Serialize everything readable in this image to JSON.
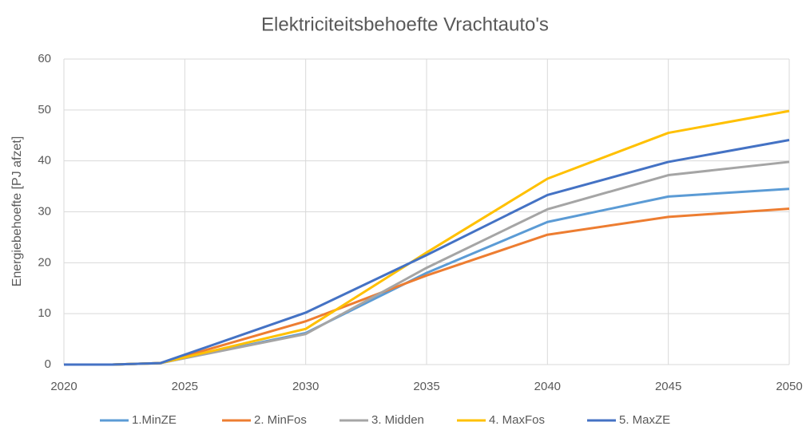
{
  "chart_data": {
    "type": "line",
    "title": "Elektriciteitsbehoefte Vrachtauto's",
    "y_label": "Energiebehoefte [PJ afzet]",
    "x": [
      2020,
      2022,
      2024,
      2030,
      2035,
      2040,
      2045,
      2050
    ],
    "series": [
      {
        "name": "1.MinZE",
        "color": "#5b9bd5",
        "values": [
          0,
          0,
          0.3,
          6.2,
          18,
          28,
          33,
          34.5
        ]
      },
      {
        "name": "2. MinFos",
        "color": "#ed7d31",
        "values": [
          0,
          0,
          0.3,
          8.5,
          17.5,
          25.5,
          29,
          30.6
        ]
      },
      {
        "name": "3. Midden",
        "color": "#a5a5a5",
        "values": [
          0,
          0,
          0.3,
          6,
          19,
          30.5,
          37.2,
          39.8
        ]
      },
      {
        "name": "4. MaxFos",
        "color": "#ffc000",
        "values": [
          0,
          0,
          0.3,
          7,
          22,
          36.5,
          45.5,
          49.8
        ]
      },
      {
        "name": "5. MaxZE",
        "color": "#4472c4",
        "values": [
          0,
          0,
          0.3,
          10.2,
          21.5,
          33.3,
          39.8,
          44.1
        ]
      }
    ],
    "xlim": [
      2020,
      2050
    ],
    "xticks": [
      2020,
      2025,
      2030,
      2035,
      2040,
      2045,
      2050
    ],
    "ylim": [
      0,
      60
    ],
    "yticks": [
      0,
      10,
      20,
      30,
      40,
      50,
      60
    ],
    "grid": true,
    "legend": "bottom"
  }
}
